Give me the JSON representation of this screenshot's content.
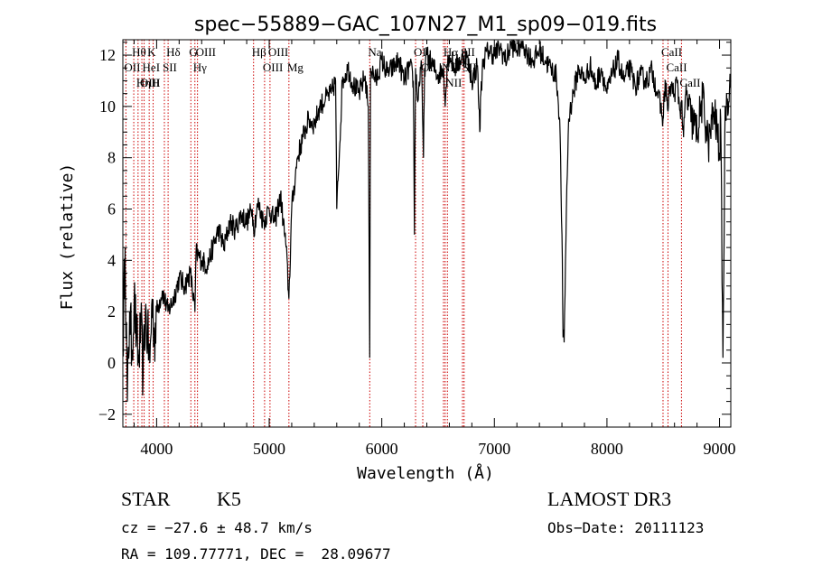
{
  "chart_data": {
    "type": "line",
    "title": "spec−55889−GAC_107N27_M1_sp09−019.fits",
    "xlabel": "Wavelength (Å)",
    "ylabel": "Flux (relative)",
    "xlim": [
      3700,
      9100
    ],
    "ylim": [
      -2.5,
      12.6
    ],
    "xticks": [
      4000,
      5000,
      6000,
      7000,
      8000,
      9000
    ],
    "yticks": [
      -2,
      0,
      2,
      4,
      6,
      8,
      10,
      12
    ],
    "xtick_labels": [
      "4000",
      "5000",
      "6000",
      "7000",
      "8000",
      "9000"
    ],
    "ytick_labels": [
      "−2",
      "0",
      "2",
      "4",
      "6",
      "8",
      "10",
      "12"
    ],
    "series": [
      {
        "name": "spectrum",
        "x": [
          3700,
          3720,
          3740,
          3760,
          3780,
          3800,
          3820,
          3840,
          3860,
          3880,
          3900,
          3920,
          3940,
          3960,
          3980,
          4000,
          4050,
          4100,
          4150,
          4200,
          4250,
          4300,
          4340,
          4350,
          4400,
          4450,
          4500,
          4550,
          4600,
          4650,
          4700,
          4750,
          4800,
          4850,
          4861,
          4900,
          4950,
          5000,
          5050,
          5100,
          5150,
          5175,
          5200,
          5250,
          5300,
          5350,
          5400,
          5450,
          5500,
          5550,
          5590,
          5600,
          5650,
          5700,
          5750,
          5800,
          5850,
          5880,
          5893,
          5900,
          5950,
          6000,
          6050,
          6100,
          6150,
          6200,
          6250,
          6280,
          6290,
          6300,
          6320,
          6350,
          6370,
          6380,
          6400,
          6450,
          6500,
          6550,
          6563,
          6580,
          6600,
          6650,
          6700,
          6750,
          6800,
          6850,
          6870,
          6880,
          6900,
          6950,
          7000,
          7050,
          7100,
          7150,
          7200,
          7250,
          7300,
          7350,
          7400,
          7450,
          7500,
          7550,
          7580,
          7600,
          7610,
          7620,
          7640,
          7660,
          7700,
          7750,
          7800,
          7850,
          7900,
          7950,
          8000,
          8050,
          8100,
          8150,
          8200,
          8250,
          8300,
          8350,
          8400,
          8450,
          8498,
          8520,
          8542,
          8560,
          8600,
          8620,
          8650,
          8662,
          8680,
          8700,
          8750,
          8800,
          8850,
          8900,
          8950,
          8980,
          9000,
          9010,
          9030,
          9050,
          9070,
          9100
        ],
        "values": [
          0.5,
          4.5,
          -1.5,
          2.0,
          0.5,
          2.5,
          1.0,
          0.0,
          1.5,
          -0.5,
          2.0,
          1.0,
          0.0,
          2.5,
          1.0,
          2.0,
          2.8,
          2.0,
          2.5,
          3.3,
          3.0,
          3.5,
          2.0,
          4.3,
          4.0,
          3.8,
          4.5,
          5.2,
          4.5,
          5.5,
          5.2,
          5.8,
          5.5,
          6.0,
          5.2,
          6.2,
          5.5,
          6.0,
          5.5,
          6.5,
          4.5,
          2.5,
          6.0,
          8.0,
          8.8,
          9.5,
          9.3,
          10.0,
          10.3,
          10.5,
          11.0,
          6.0,
          11.0,
          11.5,
          10.8,
          10.5,
          11.2,
          10.0,
          0.2,
          11.5,
          11.0,
          11.8,
          11.3,
          11.5,
          11.8,
          11.0,
          11.6,
          11.0,
          5.0,
          11.5,
          10.2,
          11.8,
          8.0,
          11.5,
          12.0,
          11.6,
          11.2,
          11.5,
          10.0,
          11.6,
          12.0,
          11.5,
          11.8,
          12.0,
          11.0,
          11.6,
          9.0,
          10.5,
          11.8,
          12.2,
          12.0,
          12.3,
          11.8,
          12.4,
          12.2,
          12.5,
          12.0,
          11.8,
          12.2,
          11.8,
          11.5,
          11.2,
          9.5,
          5.0,
          1.0,
          0.8,
          6.0,
          9.5,
          10.5,
          11.5,
          11.0,
          11.6,
          10.8,
          11.5,
          10.5,
          11.3,
          11.8,
          11.0,
          11.5,
          10.8,
          11.2,
          11.0,
          11.4,
          10.5,
          9.5,
          11.0,
          9.8,
          10.8,
          10.5,
          11.0,
          9.8,
          10.2,
          8.8,
          10.5,
          9.5,
          9.0,
          10.3,
          8.5,
          9.8,
          9.0,
          8.2,
          9.5,
          0.2,
          10.0,
          10.3,
          11.0
        ]
      }
    ],
    "line_ids": [
      {
        "label": "Hθ",
        "wavelength": 3797
      },
      {
        "label": "OII",
        "wavelength": 3727
      },
      {
        "label": "OIII",
        "wavelength": 3869
      },
      {
        "label": "K",
        "wavelength": 3934
      },
      {
        "label": "HeI",
        "wavelength": 3889
      },
      {
        "label": "Hη",
        "wavelength": 3835
      },
      {
        "label": "H",
        "wavelength": 3969
      },
      {
        "label": "Hδ",
        "wavelength": 4102
      },
      {
        "label": "SII",
        "wavelength": 4069
      },
      {
        "label": "OIII",
        "wavelength": 4363
      },
      {
        "label": "Hγ",
        "wavelength": 4340
      },
      {
        "label": "G",
        "wavelength": 4304
      },
      {
        "label": "OIII",
        "wavelength": 5007
      },
      {
        "label": "OIII",
        "wavelength": 4959
      },
      {
        "label": "Hβ",
        "wavelength": 4861
      },
      {
        "label": "Mg",
        "wavelength": 5175
      },
      {
        "label": "Na",
        "wavelength": 5893
      },
      {
        "label": "OI",
        "wavelength": 6300
      },
      {
        "label": "OI",
        "wavelength": 6364
      },
      {
        "label": "Hα",
        "wavelength": 6563
      },
      {
        "label": "NII",
        "wavelength": 6548
      },
      {
        "label": "NII",
        "wavelength": 6583
      },
      {
        "label": "SII",
        "wavelength": 6717
      },
      {
        "label": "SII",
        "wavelength": 6731
      },
      {
        "label": "CaII",
        "wavelength": 8498
      },
      {
        "label": "CaII",
        "wavelength": 8542
      },
      {
        "label": "CaII",
        "wavelength": 8662
      }
    ],
    "line_color": "#cc0000",
    "grid": false
  },
  "info": {
    "class_type": "STAR",
    "subclass": "K5",
    "survey": "LAMOST DR3",
    "redshift": "cz = −27.6 ± 48.7 km/s",
    "obs_date": "Obs−Date: 20111123",
    "coords": "RA = 109.77771, DEC =  28.09677"
  }
}
